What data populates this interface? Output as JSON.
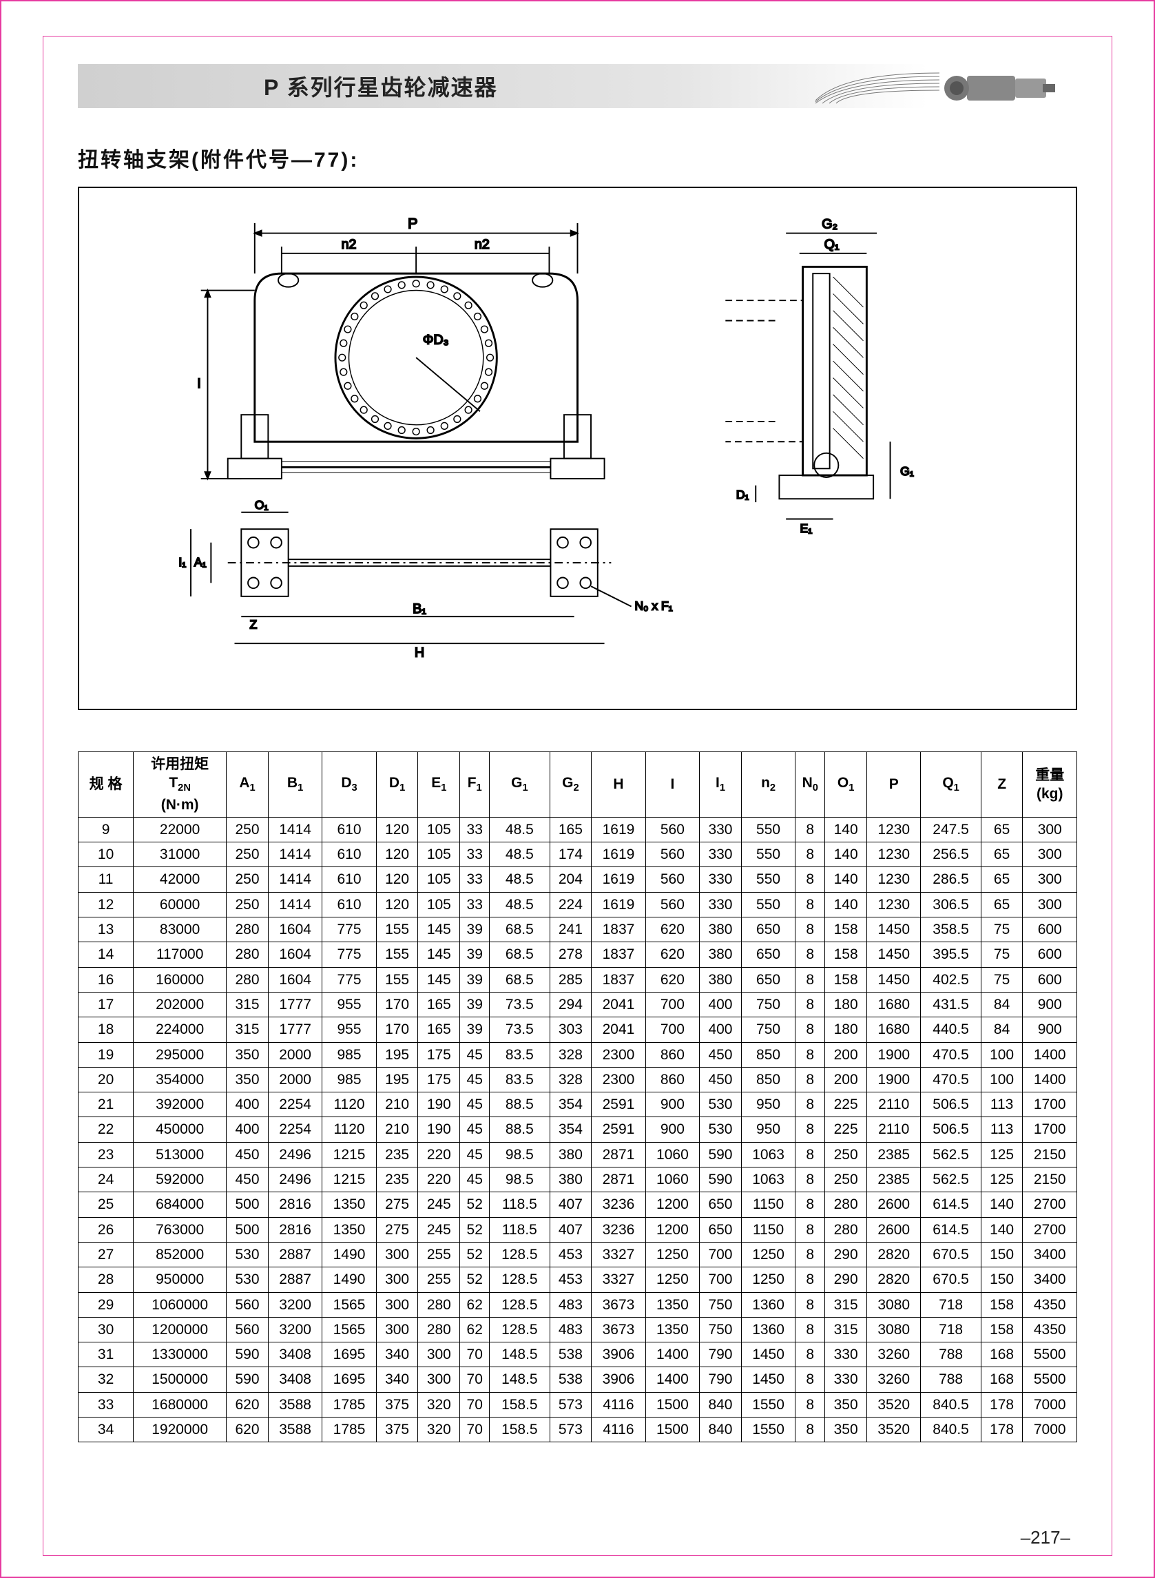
{
  "header": {
    "title": "P 系列行星齿轮减速器"
  },
  "section": {
    "title": "扭转轴支架(附件代号—77):"
  },
  "diagram": {
    "labels": [
      "P",
      "n2",
      "n2",
      "ΦD3",
      "I",
      "O1",
      "I1",
      "A1",
      "Z",
      "B1",
      "H",
      "N0 x F1",
      "G2",
      "Q1",
      "D1",
      "E1",
      "G1"
    ],
    "stroke_color": "#000000",
    "background": "#ffffff"
  },
  "table": {
    "columns": [
      {
        "label": "规 格",
        "key": "spec"
      },
      {
        "label": "许用扭矩\nT2N\n(N·m)",
        "key": "t2n"
      },
      {
        "label": "A1",
        "key": "A1"
      },
      {
        "label": "B1",
        "key": "B1"
      },
      {
        "label": "D3",
        "key": "D3"
      },
      {
        "label": "D1",
        "key": "D1"
      },
      {
        "label": "E1",
        "key": "E1"
      },
      {
        "label": "F1",
        "key": "F1"
      },
      {
        "label": "G1",
        "key": "G1"
      },
      {
        "label": "G2",
        "key": "G2"
      },
      {
        "label": "H",
        "key": "H"
      },
      {
        "label": "I",
        "key": "I"
      },
      {
        "label": "I1",
        "key": "I1"
      },
      {
        "label": "n2",
        "key": "n2"
      },
      {
        "label": "N0",
        "key": "N0"
      },
      {
        "label": "O1",
        "key": "O1"
      },
      {
        "label": "P",
        "key": "P"
      },
      {
        "label": "Q1",
        "key": "Q1"
      },
      {
        "label": "Z",
        "key": "Z"
      },
      {
        "label": "重量\n(kg)",
        "key": "wt"
      }
    ],
    "rows": [
      [
        "9",
        "22000",
        "250",
        "1414",
        "610",
        "120",
        "105",
        "33",
        "48.5",
        "165",
        "1619",
        "560",
        "330",
        "550",
        "8",
        "140",
        "1230",
        "247.5",
        "65",
        "300"
      ],
      [
        "10",
        "31000",
        "250",
        "1414",
        "610",
        "120",
        "105",
        "33",
        "48.5",
        "174",
        "1619",
        "560",
        "330",
        "550",
        "8",
        "140",
        "1230",
        "256.5",
        "65",
        "300"
      ],
      [
        "11",
        "42000",
        "250",
        "1414",
        "610",
        "120",
        "105",
        "33",
        "48.5",
        "204",
        "1619",
        "560",
        "330",
        "550",
        "8",
        "140",
        "1230",
        "286.5",
        "65",
        "300"
      ],
      [
        "12",
        "60000",
        "250",
        "1414",
        "610",
        "120",
        "105",
        "33",
        "48.5",
        "224",
        "1619",
        "560",
        "330",
        "550",
        "8",
        "140",
        "1230",
        "306.5",
        "65",
        "300"
      ],
      [
        "13",
        "83000",
        "280",
        "1604",
        "775",
        "155",
        "145",
        "39",
        "68.5",
        "241",
        "1837",
        "620",
        "380",
        "650",
        "8",
        "158",
        "1450",
        "358.5",
        "75",
        "600"
      ],
      [
        "14",
        "117000",
        "280",
        "1604",
        "775",
        "155",
        "145",
        "39",
        "68.5",
        "278",
        "1837",
        "620",
        "380",
        "650",
        "8",
        "158",
        "1450",
        "395.5",
        "75",
        "600"
      ],
      [
        "16",
        "160000",
        "280",
        "1604",
        "775",
        "155",
        "145",
        "39",
        "68.5",
        "285",
        "1837",
        "620",
        "380",
        "650",
        "8",
        "158",
        "1450",
        "402.5",
        "75",
        "600"
      ],
      [
        "17",
        "202000",
        "315",
        "1777",
        "955",
        "170",
        "165",
        "39",
        "73.5",
        "294",
        "2041",
        "700",
        "400",
        "750",
        "8",
        "180",
        "1680",
        "431.5",
        "84",
        "900"
      ],
      [
        "18",
        "224000",
        "315",
        "1777",
        "955",
        "170",
        "165",
        "39",
        "73.5",
        "303",
        "2041",
        "700",
        "400",
        "750",
        "8",
        "180",
        "1680",
        "440.5",
        "84",
        "900"
      ],
      [
        "19",
        "295000",
        "350",
        "2000",
        "985",
        "195",
        "175",
        "45",
        "83.5",
        "328",
        "2300",
        "860",
        "450",
        "850",
        "8",
        "200",
        "1900",
        "470.5",
        "100",
        "1400"
      ],
      [
        "20",
        "354000",
        "350",
        "2000",
        "985",
        "195",
        "175",
        "45",
        "83.5",
        "328",
        "2300",
        "860",
        "450",
        "850",
        "8",
        "200",
        "1900",
        "470.5",
        "100",
        "1400"
      ],
      [
        "21",
        "392000",
        "400",
        "2254",
        "1120",
        "210",
        "190",
        "45",
        "88.5",
        "354",
        "2591",
        "900",
        "530",
        "950",
        "8",
        "225",
        "2110",
        "506.5",
        "113",
        "1700"
      ],
      [
        "22",
        "450000",
        "400",
        "2254",
        "1120",
        "210",
        "190",
        "45",
        "88.5",
        "354",
        "2591",
        "900",
        "530",
        "950",
        "8",
        "225",
        "2110",
        "506.5",
        "113",
        "1700"
      ],
      [
        "23",
        "513000",
        "450",
        "2496",
        "1215",
        "235",
        "220",
        "45",
        "98.5",
        "380",
        "2871",
        "1060",
        "590",
        "1063",
        "8",
        "250",
        "2385",
        "562.5",
        "125",
        "2150"
      ],
      [
        "24",
        "592000",
        "450",
        "2496",
        "1215",
        "235",
        "220",
        "45",
        "98.5",
        "380",
        "2871",
        "1060",
        "590",
        "1063",
        "8",
        "250",
        "2385",
        "562.5",
        "125",
        "2150"
      ],
      [
        "25",
        "684000",
        "500",
        "2816",
        "1350",
        "275",
        "245",
        "52",
        "118.5",
        "407",
        "3236",
        "1200",
        "650",
        "1150",
        "8",
        "280",
        "2600",
        "614.5",
        "140",
        "2700"
      ],
      [
        "26",
        "763000",
        "500",
        "2816",
        "1350",
        "275",
        "245",
        "52",
        "118.5",
        "407",
        "3236",
        "1200",
        "650",
        "1150",
        "8",
        "280",
        "2600",
        "614.5",
        "140",
        "2700"
      ],
      [
        "27",
        "852000",
        "530",
        "2887",
        "1490",
        "300",
        "255",
        "52",
        "128.5",
        "453",
        "3327",
        "1250",
        "700",
        "1250",
        "8",
        "290",
        "2820",
        "670.5",
        "150",
        "3400"
      ],
      [
        "28",
        "950000",
        "530",
        "2887",
        "1490",
        "300",
        "255",
        "52",
        "128.5",
        "453",
        "3327",
        "1250",
        "700",
        "1250",
        "8",
        "290",
        "2820",
        "670.5",
        "150",
        "3400"
      ],
      [
        "29",
        "1060000",
        "560",
        "3200",
        "1565",
        "300",
        "280",
        "62",
        "128.5",
        "483",
        "3673",
        "1350",
        "750",
        "1360",
        "8",
        "315",
        "3080",
        "718",
        "158",
        "4350"
      ],
      [
        "30",
        "1200000",
        "560",
        "3200",
        "1565",
        "300",
        "280",
        "62",
        "128.5",
        "483",
        "3673",
        "1350",
        "750",
        "1360",
        "8",
        "315",
        "3080",
        "718",
        "158",
        "4350"
      ],
      [
        "31",
        "1330000",
        "590",
        "3408",
        "1695",
        "340",
        "300",
        "70",
        "148.5",
        "538",
        "3906",
        "1400",
        "790",
        "1450",
        "8",
        "330",
        "3260",
        "788",
        "168",
        "5500"
      ],
      [
        "32",
        "1500000",
        "590",
        "3408",
        "1695",
        "340",
        "300",
        "70",
        "148.5",
        "538",
        "3906",
        "1400",
        "790",
        "1450",
        "8",
        "330",
        "3260",
        "788",
        "168",
        "5500"
      ],
      [
        "33",
        "1680000",
        "620",
        "3588",
        "1785",
        "375",
        "320",
        "70",
        "158.5",
        "573",
        "4116",
        "1500",
        "840",
        "1550",
        "8",
        "350",
        "3520",
        "840.5",
        "178",
        "7000"
      ],
      [
        "34",
        "1920000",
        "620",
        "3588",
        "1785",
        "375",
        "320",
        "70",
        "158.5",
        "573",
        "4116",
        "1500",
        "840",
        "1550",
        "8",
        "350",
        "3520",
        "840.5",
        "178",
        "7000"
      ]
    ]
  },
  "page_number": "–217–",
  "colors": {
    "border_pink": "#e63ba0",
    "header_gray": "#d0d0d0",
    "text": "#111111",
    "table_border": "#000000"
  },
  "typography": {
    "title_fontsize": 32,
    "section_fontsize": 30,
    "table_fontsize": 21,
    "font_family": "SimSun, Microsoft YaHei, Arial"
  }
}
